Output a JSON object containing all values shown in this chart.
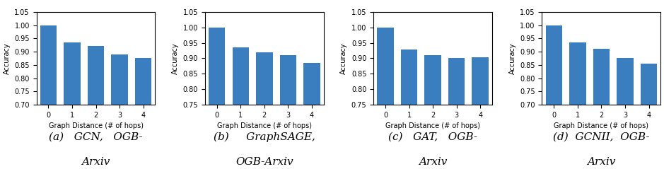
{
  "charts": [
    {
      "caption_line1": "(a)   GCN,   OGB-",
      "caption_line2": "Arxiv",
      "values": [
        1.0,
        0.935,
        0.921,
        0.889,
        0.876
      ],
      "ylim": [
        0.7,
        1.05
      ],
      "yticks": [
        0.7,
        0.75,
        0.8,
        0.85,
        0.9,
        0.95,
        1.0,
        1.05
      ]
    },
    {
      "caption_line1": "(b)     GraphSAGE,",
      "caption_line2": "OGB-Arxiv",
      "values": [
        1.0,
        0.935,
        0.919,
        0.911,
        0.885
      ],
      "ylim": [
        0.75,
        1.05
      ],
      "yticks": [
        0.75,
        0.8,
        0.85,
        0.9,
        0.95,
        1.0,
        1.05
      ]
    },
    {
      "caption_line1": "(c)   GAT,   OGB-",
      "caption_line2": "Arxiv",
      "values": [
        1.0,
        0.928,
        0.91,
        0.9,
        0.904
      ],
      "ylim": [
        0.75,
        1.05
      ],
      "yticks": [
        0.75,
        0.8,
        0.85,
        0.9,
        0.95,
        1.0,
        1.05
      ]
    },
    {
      "caption_line1": "(d)  GCNII,  OGB-",
      "caption_line2": "Arxiv",
      "values": [
        1.0,
        0.936,
        0.912,
        0.876,
        0.854
      ],
      "ylim": [
        0.7,
        1.05
      ],
      "yticks": [
        0.7,
        0.75,
        0.8,
        0.85,
        0.9,
        0.95,
        1.0,
        1.05
      ]
    }
  ],
  "bar_color": "#3A7EBF",
  "xlabel": "Graph Distance (# of hops)",
  "ylabel": "Accuracy",
  "xticks": [
    0,
    1,
    2,
    3,
    4
  ],
  "caption_fontsize": 11,
  "tick_fontsize": 7,
  "label_fontsize": 7
}
